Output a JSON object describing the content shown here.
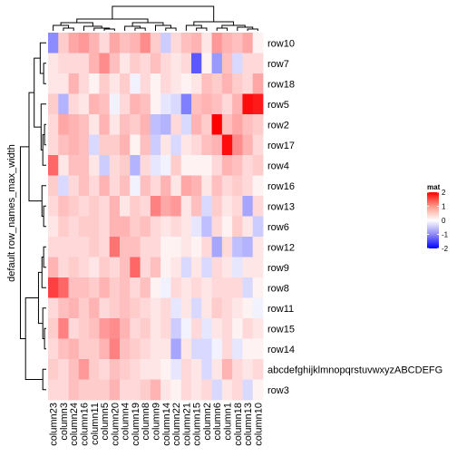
{
  "chart_data": {
    "type": "heatmap",
    "row_title": "default row_names_max_width",
    "rows": [
      "row10",
      "row7",
      "row18",
      "row5",
      "row2",
      "row17",
      "row4",
      "row16",
      "row13",
      "row6",
      "row12",
      "row9",
      "row8",
      "row11",
      "row15",
      "row14",
      "abcdefghijklmnopqrstuvwxyzABCDEFGHIJKLMNOPQRSTUVWXYZ",
      "row3"
    ],
    "row_display": [
      "row10",
      "row7",
      "row18",
      "row5",
      "row2",
      "row17",
      "row4",
      "row16",
      "row13",
      "row6",
      "row12",
      "row9",
      "row8",
      "row11",
      "row15",
      "row14",
      "abcdefghijklmnopqrstuvwxyzABCDEFG",
      "row3"
    ],
    "columns": [
      "column23",
      "column3",
      "column24",
      "column16",
      "column11",
      "column5",
      "column20",
      "column4",
      "column19",
      "column8",
      "column9",
      "column14",
      "column22",
      "column21",
      "column15",
      "column2",
      "column6",
      "column1",
      "column18",
      "column13",
      "column10"
    ],
    "values": [
      [
        -0.9,
        0.4,
        0.7,
        0.8,
        0.6,
        0.3,
        0.7,
        0.5,
        0.6,
        0.9,
        0.4,
        -0.4,
        0.3,
        0.5,
        0.6,
        0.2,
        0.8,
        0.6,
        0.5,
        0.7,
        0.1
      ],
      [
        0.2,
        0.3,
        0.3,
        0.3,
        0.6,
        0.9,
        0.5,
        0.2,
        0.4,
        0.3,
        0.5,
        0.3,
        0.2,
        0.3,
        -1.3,
        0.1,
        -0.8,
        0.5,
        -0.3,
        0.3,
        0.3
      ],
      [
        0.2,
        0.2,
        0.6,
        0.3,
        0.1,
        0.4,
        0.2,
        0.4,
        -0.1,
        0.3,
        0.1,
        0.3,
        0.2,
        0.1,
        0.2,
        0.5,
        0.4,
        0.6,
        0.4,
        0.3,
        0.7
      ],
      [
        0.4,
        -0.6,
        0.3,
        0.2,
        0.6,
        0.5,
        -0.1,
        0.3,
        0.6,
        0.5,
        0.1,
        -0.2,
        -0.3,
        -1.0,
        0.5,
        0.6,
        0.5,
        0.3,
        0.6,
        1.9,
        1.8
      ],
      [
        0.3,
        0.7,
        0.6,
        0.5,
        0.2,
        0.6,
        0.2,
        0.5,
        0.4,
        0.6,
        -0.5,
        -0.6,
        0.3,
        -0.3,
        0.6,
        0.4,
        2.0,
        0.5,
        0.7,
        0.5,
        0.4
      ],
      [
        0.3,
        0.5,
        0.6,
        0.5,
        -0.3,
        0.4,
        0.4,
        0.6,
        0.1,
        0.5,
        -0.4,
        0.2,
        -0.3,
        0.2,
        0.3,
        0.5,
        0.6,
        1.9,
        0.9,
        0.6,
        0.3
      ],
      [
        1.2,
        0.2,
        0.5,
        0.5,
        0.2,
        -0.4,
        0.3,
        0.4,
        -0.6,
        0.3,
        -0.2,
        -0.1,
        0.4,
        0.1,
        0.1,
        0.1,
        0.3,
        0.6,
        0.5,
        0.3,
        0.4
      ],
      [
        0.4,
        -0.3,
        0.3,
        0.5,
        0.3,
        0.6,
        0.3,
        0.5,
        -0.1,
        0.5,
        0.3,
        0.6,
        0.2,
        0.7,
        0.6,
        0.2,
        0.5,
        0.3,
        0.4,
        0.3,
        0.1
      ],
      [
        0.3,
        0.5,
        0.4,
        0.3,
        0.4,
        0.3,
        0.6,
        0.2,
        0.4,
        0.3,
        1.0,
        0.7,
        0.8,
        0.2,
        0.5,
        -0.3,
        0.4,
        0.2,
        0.3,
        -0.7,
        0.3
      ],
      [
        0.2,
        0.4,
        0.3,
        0.4,
        0.4,
        0.3,
        0.6,
        0.6,
        0.4,
        0.5,
        0.3,
        0.2,
        0.3,
        0.2,
        -0.2,
        -0.5,
        0.3,
        0.1,
        0.4,
        0.2,
        -0.4
      ],
      [
        0.3,
        0.3,
        0.3,
        0.3,
        0.4,
        0.3,
        1.1,
        0.5,
        0.5,
        0.3,
        0.3,
        0.1,
        0.1,
        0.2,
        0.1,
        0.3,
        -0.7,
        0.3,
        -0.5,
        -0.6,
        0.2
      ],
      [
        0.6,
        0.3,
        0.4,
        0.3,
        0.2,
        0.4,
        0.3,
        0.5,
        1.2,
        0.3,
        0.5,
        0.1,
        0.2,
        -0.3,
        0.2,
        -0.3,
        0.3,
        0.2,
        -0.2,
        0.2,
        0.2
      ],
      [
        1.5,
        1.2,
        0.5,
        0.5,
        0.4,
        0.6,
        0.4,
        0.5,
        0.3,
        0.5,
        0.1,
        -0.1,
        0.3,
        0.2,
        0.3,
        0.2,
        0.3,
        0.3,
        0.3,
        -0.3,
        0.1
      ],
      [
        0.3,
        0.5,
        0.6,
        0.4,
        0.6,
        0.3,
        0.4,
        0.5,
        0.4,
        0.3,
        0.2,
        0.3,
        -0.2,
        0.2,
        -0.3,
        0.2,
        0.4,
        0.3,
        0.2,
        0.1,
        -0.1
      ],
      [
        0.4,
        1.0,
        0.3,
        0.4,
        0.5,
        0.8,
        0.9,
        0.6,
        0.3,
        0.4,
        0.2,
        0.3,
        -0.4,
        -0.1,
        0.3,
        -0.2,
        0.2,
        0.3,
        0.1,
        0.3,
        0.2
      ],
      [
        0.3,
        0.5,
        0.6,
        0.4,
        0.4,
        0.6,
        1.0,
        0.5,
        0.4,
        0.3,
        0.2,
        0.2,
        -0.7,
        0.2,
        -0.3,
        -0.3,
        -0.1,
        0.3,
        -0.2,
        0.1,
        0.1
      ],
      [
        0.4,
        0.3,
        0.5,
        0.8,
        0.4,
        0.3,
        0.5,
        0.4,
        0.3,
        0.2,
        0.2,
        0.1,
        -0.2,
        0.3,
        0.2,
        -0.3,
        0.2,
        0.6,
        0.3,
        0.2,
        0.3
      ],
      [
        0.3,
        0.3,
        0.5,
        0.4,
        0.4,
        0.4,
        0.6,
        0.3,
        0.3,
        0.4,
        0.6,
        0.2,
        0.1,
        0.3,
        0.2,
        0.3,
        -0.3,
        0.2,
        0.3,
        -0.3,
        0.1
      ]
    ],
    "legend": {
      "title": "mat",
      "ticks": [
        "2",
        "1",
        "0",
        "-1",
        "-2"
      ],
      "tick_values": [
        2,
        1,
        0,
        -1,
        -2
      ],
      "range": [
        -2,
        2
      ],
      "colors": {
        "low": "#0000ff",
        "mid": "#ffffff",
        "high": "#ff0000"
      }
    }
  }
}
